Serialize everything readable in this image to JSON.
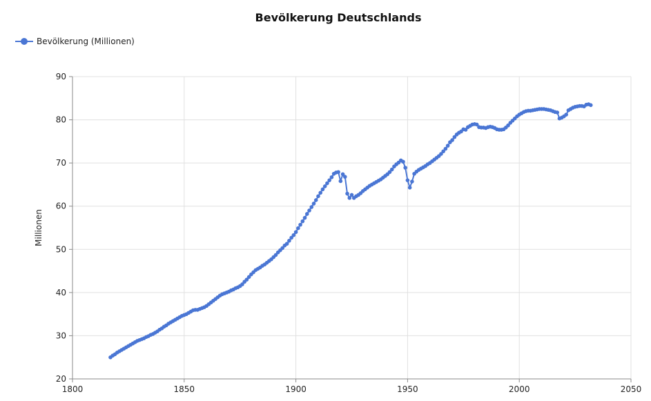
{
  "chart_data": {
    "type": "line",
    "title": "Bevölkerung Deutschlands",
    "xlabel": "",
    "ylabel": "Millionen",
    "xlim": [
      1800,
      2050
    ],
    "ylim": [
      20,
      90
    ],
    "x_ticks": [
      1800,
      1850,
      1900,
      1950,
      2000,
      2050
    ],
    "y_ticks": [
      20,
      30,
      40,
      50,
      60,
      70,
      80,
      90
    ],
    "grid": true,
    "legend_position": "top-left",
    "colors": {
      "series": "#4a76d4",
      "grid": "#e0e0e0",
      "axis": "#8a8a8a"
    },
    "series": [
      {
        "name": "Bevölkerung (Millionen)",
        "points": [
          [
            1817,
            25.0
          ],
          [
            1818,
            25.4
          ],
          [
            1819,
            25.7
          ],
          [
            1820,
            26.1
          ],
          [
            1821,
            26.4
          ],
          [
            1822,
            26.7
          ],
          [
            1823,
            27.0
          ],
          [
            1824,
            27.3
          ],
          [
            1825,
            27.6
          ],
          [
            1826,
            27.9
          ],
          [
            1827,
            28.2
          ],
          [
            1828,
            28.5
          ],
          [
            1829,
            28.8
          ],
          [
            1830,
            29.0
          ],
          [
            1831,
            29.2
          ],
          [
            1832,
            29.4
          ],
          [
            1833,
            29.7
          ],
          [
            1834,
            29.9
          ],
          [
            1835,
            30.2
          ],
          [
            1836,
            30.4
          ],
          [
            1837,
            30.7
          ],
          [
            1838,
            31.0
          ],
          [
            1839,
            31.4
          ],
          [
            1840,
            31.7
          ],
          [
            1841,
            32.1
          ],
          [
            1842,
            32.4
          ],
          [
            1843,
            32.8
          ],
          [
            1844,
            33.1
          ],
          [
            1845,
            33.4
          ],
          [
            1846,
            33.7
          ],
          [
            1847,
            34.0
          ],
          [
            1848,
            34.3
          ],
          [
            1849,
            34.6
          ],
          [
            1850,
            34.8
          ],
          [
            1851,
            35.0
          ],
          [
            1852,
            35.3
          ],
          [
            1853,
            35.6
          ],
          [
            1854,
            35.9
          ],
          [
            1855,
            36.0
          ],
          [
            1856,
            36.0
          ],
          [
            1857,
            36.2
          ],
          [
            1858,
            36.4
          ],
          [
            1859,
            36.6
          ],
          [
            1860,
            36.9
          ],
          [
            1861,
            37.3
          ],
          [
            1862,
            37.7
          ],
          [
            1863,
            38.1
          ],
          [
            1864,
            38.5
          ],
          [
            1865,
            38.9
          ],
          [
            1866,
            39.3
          ],
          [
            1867,
            39.6
          ],
          [
            1868,
            39.8
          ],
          [
            1869,
            40.0
          ],
          [
            1870,
            40.2
          ],
          [
            1871,
            40.5
          ],
          [
            1872,
            40.7
          ],
          [
            1873,
            41.0
          ],
          [
            1874,
            41.2
          ],
          [
            1875,
            41.5
          ],
          [
            1876,
            41.9
          ],
          [
            1877,
            42.5
          ],
          [
            1878,
            43.0
          ],
          [
            1879,
            43.6
          ],
          [
            1880,
            44.2
          ],
          [
            1881,
            44.7
          ],
          [
            1882,
            45.2
          ],
          [
            1883,
            45.5
          ],
          [
            1884,
            45.8
          ],
          [
            1885,
            46.2
          ],
          [
            1886,
            46.5
          ],
          [
            1887,
            46.9
          ],
          [
            1888,
            47.3
          ],
          [
            1889,
            47.7
          ],
          [
            1890,
            48.2
          ],
          [
            1891,
            48.7
          ],
          [
            1892,
            49.3
          ],
          [
            1893,
            49.8
          ],
          [
            1894,
            50.3
          ],
          [
            1895,
            50.9
          ],
          [
            1896,
            51.3
          ],
          [
            1897,
            52.0
          ],
          [
            1898,
            52.7
          ],
          [
            1899,
            53.3
          ],
          [
            1900,
            54.0
          ],
          [
            1901,
            54.9
          ],
          [
            1902,
            55.7
          ],
          [
            1903,
            56.5
          ],
          [
            1904,
            57.3
          ],
          [
            1905,
            58.2
          ],
          [
            1906,
            59.0
          ],
          [
            1907,
            59.8
          ],
          [
            1908,
            60.6
          ],
          [
            1909,
            61.4
          ],
          [
            1910,
            62.3
          ],
          [
            1911,
            63.1
          ],
          [
            1912,
            63.9
          ],
          [
            1913,
            64.6
          ],
          [
            1914,
            65.3
          ],
          [
            1915,
            66.0
          ],
          [
            1916,
            66.7
          ],
          [
            1917,
            67.5
          ],
          [
            1918,
            67.8
          ],
          [
            1919,
            67.9
          ],
          [
            1920,
            65.8
          ],
          [
            1921,
            67.4
          ],
          [
            1922,
            66.8
          ],
          [
            1923,
            62.9
          ],
          [
            1924,
            61.9
          ],
          [
            1925,
            62.6
          ],
          [
            1926,
            61.9
          ],
          [
            1927,
            62.3
          ],
          [
            1928,
            62.6
          ],
          [
            1929,
            63.0
          ],
          [
            1930,
            63.5
          ],
          [
            1931,
            63.9
          ],
          [
            1932,
            64.3
          ],
          [
            1933,
            64.7
          ],
          [
            1934,
            65.0
          ],
          [
            1935,
            65.3
          ],
          [
            1936,
            65.6
          ],
          [
            1937,
            65.9
          ],
          [
            1938,
            66.2
          ],
          [
            1939,
            66.6
          ],
          [
            1940,
            67.0
          ],
          [
            1941,
            67.4
          ],
          [
            1942,
            67.9
          ],
          [
            1943,
            68.5
          ],
          [
            1944,
            69.2
          ],
          [
            1945,
            69.7
          ],
          [
            1946,
            70.1
          ],
          [
            1947,
            70.6
          ],
          [
            1948,
            70.3
          ],
          [
            1949,
            68.9
          ],
          [
            1950,
            66.0
          ],
          [
            1951,
            64.3
          ],
          [
            1952,
            65.7
          ],
          [
            1953,
            67.5
          ],
          [
            1954,
            68.0
          ],
          [
            1955,
            68.4
          ],
          [
            1956,
            68.7
          ],
          [
            1957,
            69.0
          ],
          [
            1958,
            69.3
          ],
          [
            1959,
            69.7
          ],
          [
            1960,
            70.0
          ],
          [
            1961,
            70.4
          ],
          [
            1962,
            70.8
          ],
          [
            1963,
            71.2
          ],
          [
            1964,
            71.6
          ],
          [
            1965,
            72.1
          ],
          [
            1966,
            72.7
          ],
          [
            1967,
            73.3
          ],
          [
            1968,
            74.0
          ],
          [
            1969,
            74.8
          ],
          [
            1970,
            75.3
          ],
          [
            1971,
            76.0
          ],
          [
            1972,
            76.6
          ],
          [
            1973,
            77.0
          ],
          [
            1974,
            77.3
          ],
          [
            1975,
            77.8
          ],
          [
            1976,
            77.7
          ],
          [
            1977,
            78.3
          ],
          [
            1978,
            78.6
          ],
          [
            1979,
            78.9
          ],
          [
            1980,
            79.0
          ],
          [
            1981,
            78.9
          ],
          [
            1982,
            78.3
          ],
          [
            1983,
            78.2
          ],
          [
            1984,
            78.2
          ],
          [
            1985,
            78.1
          ],
          [
            1986,
            78.3
          ],
          [
            1987,
            78.4
          ],
          [
            1988,
            78.3
          ],
          [
            1989,
            78.1
          ],
          [
            1990,
            77.8
          ],
          [
            1991,
            77.7
          ],
          [
            1992,
            77.7
          ],
          [
            1993,
            77.8
          ],
          [
            1994,
            78.2
          ],
          [
            1995,
            78.7
          ],
          [
            1996,
            79.3
          ],
          [
            1997,
            79.8
          ],
          [
            1998,
            80.3
          ],
          [
            1999,
            80.8
          ],
          [
            2000,
            81.2
          ],
          [
            2001,
            81.5
          ],
          [
            2002,
            81.8
          ],
          [
            2003,
            82.0
          ],
          [
            2004,
            82.1
          ],
          [
            2005,
            82.1
          ],
          [
            2006,
            82.2
          ],
          [
            2007,
            82.3
          ],
          [
            2008,
            82.4
          ],
          [
            2009,
            82.5
          ],
          [
            2010,
            82.5
          ],
          [
            2011,
            82.5
          ],
          [
            2012,
            82.4
          ],
          [
            2013,
            82.3
          ],
          [
            2014,
            82.2
          ],
          [
            2015,
            82.0
          ],
          [
            2016,
            81.8
          ],
          [
            2017,
            81.7
          ],
          [
            2018,
            80.3
          ],
          [
            2019,
            80.5
          ],
          [
            2020,
            80.8
          ],
          [
            2021,
            81.2
          ],
          [
            2022,
            82.2
          ],
          [
            2023,
            82.5
          ],
          [
            2024,
            82.8
          ],
          [
            2025,
            83.0
          ],
          [
            2026,
            83.1
          ],
          [
            2027,
            83.2
          ],
          [
            2028,
            83.2
          ],
          [
            2029,
            83.1
          ],
          [
            2030,
            83.5
          ],
          [
            2031,
            83.6
          ],
          [
            2032,
            83.4
          ]
        ]
      }
    ]
  }
}
